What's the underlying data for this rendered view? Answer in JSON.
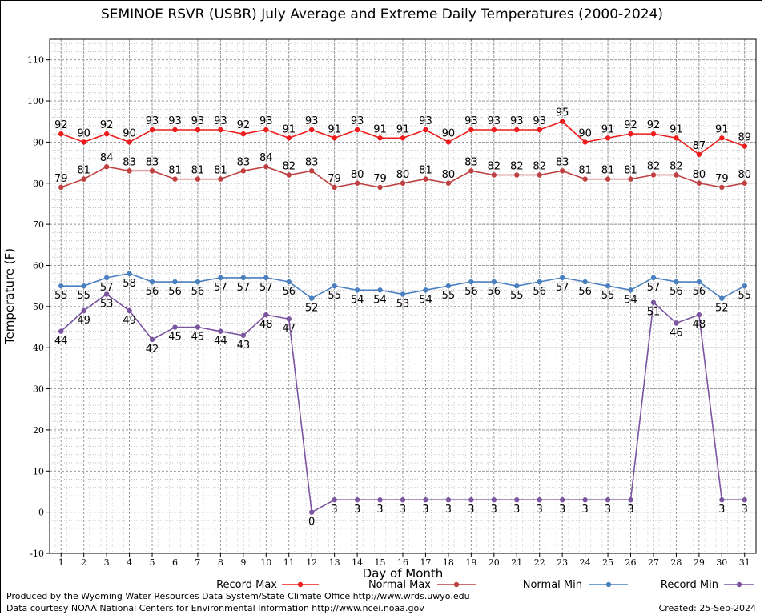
{
  "footer": {
    "line1": "Produced by the Wyoming Water Resources Data System/State Climate Office http://www.wrds.uwyo.edu",
    "line2": "Data courtesy NOAA National Centers for Environmental Information http://www.ncei.noaa.gov",
    "created": "Created:  25-Sep-2024"
  },
  "chart_data": {
    "type": "line",
    "title": "SEMINOE RSVR (USBR) July Average and Extreme Daily Temperatures (2000-2024)",
    "xlabel": "Day of Month",
    "ylabel": "Temperature (F)",
    "ylim": [
      -10,
      115
    ],
    "yticks": [
      -10,
      0,
      10,
      20,
      30,
      40,
      50,
      60,
      70,
      80,
      90,
      100,
      110
    ],
    "grid": true,
    "legend_position": "bottom",
    "x": [
      1,
      2,
      3,
      4,
      5,
      6,
      7,
      8,
      9,
      10,
      11,
      12,
      13,
      14,
      15,
      16,
      17,
      18,
      19,
      20,
      21,
      22,
      23,
      24,
      25,
      26,
      27,
      28,
      29,
      30,
      31
    ],
    "series": [
      {
        "name": "Record Max",
        "color": "#ee1c1c",
        "label_pos": "above",
        "values": [
          92,
          90,
          92,
          90,
          93,
          93,
          93,
          93,
          92,
          93,
          91,
          93,
          91,
          93,
          91,
          91,
          93,
          90,
          93,
          93,
          93,
          93,
          95,
          90,
          91,
          92,
          92,
          91,
          87,
          91,
          89
        ]
      },
      {
        "name": "Normal Max",
        "color": "#bf4040",
        "label_pos": "above",
        "values": [
          79,
          81,
          84,
          83,
          83,
          81,
          81,
          81,
          83,
          84,
          82,
          83,
          79,
          80,
          79,
          80,
          81,
          80,
          83,
          82,
          82,
          82,
          83,
          81,
          81,
          81,
          82,
          82,
          80,
          79,
          80
        ]
      },
      {
        "name": "Normal Min",
        "color": "#4a7fc0",
        "label_pos": "below",
        "values": [
          55,
          55,
          57,
          58,
          56,
          56,
          56,
          57,
          57,
          57,
          56,
          52,
          55,
          54,
          54,
          53,
          54,
          55,
          56,
          56,
          55,
          56,
          57,
          56,
          55,
          54,
          57,
          56,
          56,
          52,
          55
        ]
      },
      {
        "name": "Record Min",
        "color": "#7b55a0",
        "label_pos": "below",
        "values": [
          44,
          49,
          53,
          49,
          42,
          45,
          45,
          44,
          43,
          48,
          47,
          0,
          3,
          3,
          3,
          3,
          3,
          3,
          3,
          3,
          3,
          3,
          3,
          3,
          3,
          3,
          51,
          46,
          48,
          3,
          3
        ]
      }
    ]
  }
}
